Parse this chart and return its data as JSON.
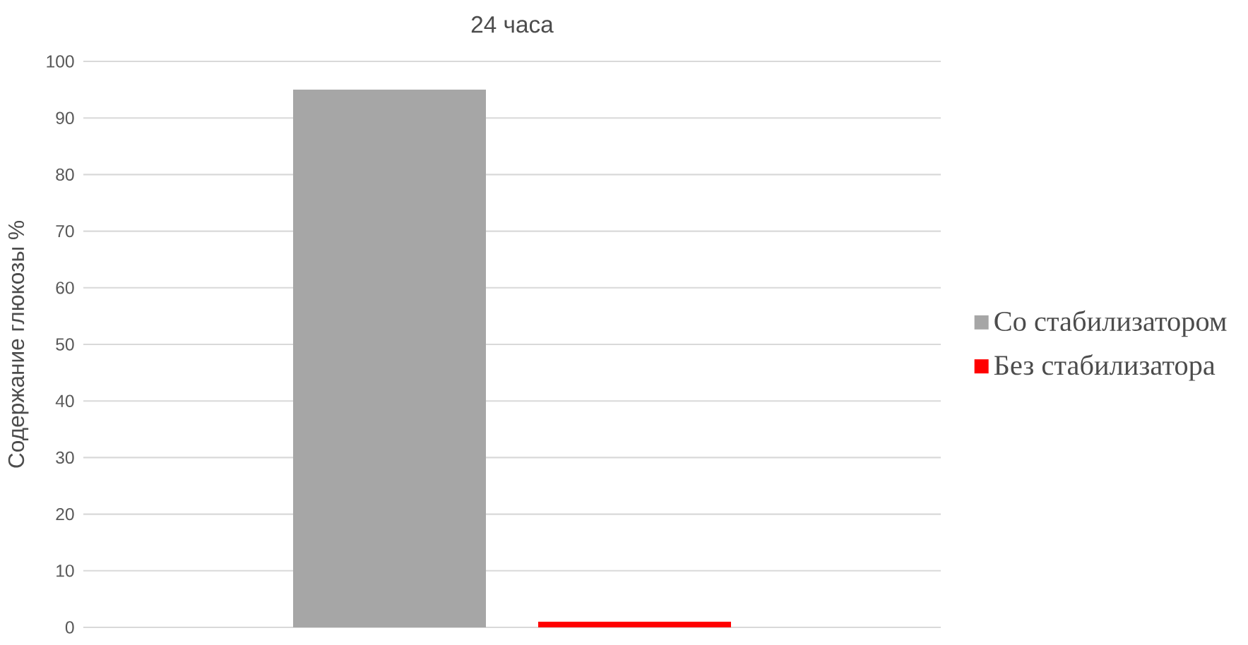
{
  "chart_data": {
    "type": "bar",
    "title": "24 часа",
    "ylabel": "Содержание глюкозы %",
    "categories": [
      null
    ],
    "series": [
      {
        "name": "Со стабилизатором",
        "color": "#a6a6a6",
        "values": [
          95
        ]
      },
      {
        "name": "Без стабилизатора",
        "color": "#ff0000",
        "values": [
          1
        ]
      }
    ],
    "ylim": [
      0,
      100
    ],
    "yticks": [
      0,
      10,
      20,
      30,
      40,
      50,
      60,
      70,
      80,
      90,
      100
    ],
    "grid": "y",
    "legend": "right"
  }
}
